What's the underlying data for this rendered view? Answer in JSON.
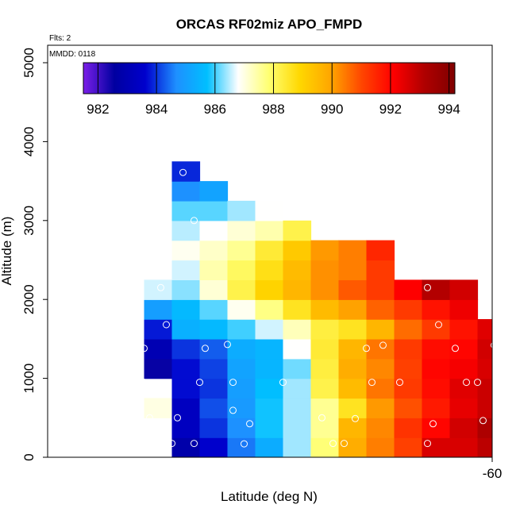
{
  "chart_data": {
    "type": "heatmap",
    "title": "ORCAS RF02miz APO_FMPD",
    "annotations": {
      "flights": "Flts: 2",
      "date": "MMDD: 0118"
    },
    "xlabel": "Latitude (deg N)",
    "ylabel": "Altitude (m)",
    "x_tick_labels": [
      "-60"
    ],
    "y_ticks": [
      0,
      1000,
      2000,
      3000,
      4000,
      5000
    ],
    "ylim": [
      0,
      5200
    ],
    "colorbar": {
      "ticks": [
        982,
        984,
        986,
        988,
        990,
        992,
        994
      ],
      "range": [
        981.5,
        994.2
      ],
      "stops": [
        "#7b1fe8",
        "#0000a0",
        "#0000cd",
        "#1e90ff",
        "#00bfff",
        "#ffffff",
        "#ffff70",
        "#ffd700",
        "#ffa500",
        "#ff4500",
        "#ff0000",
        "#b00000",
        "#800000"
      ]
    },
    "cell_size": {
      "lat": 0.5,
      "alt_m": 250
    },
    "columns": [
      {
        "lat": -62.5,
        "cells": [
          [
            500,
            987.0
          ],
          [
            1000,
            982.5
          ],
          [
            1250,
            983.0
          ],
          [
            1500,
            983.8
          ],
          [
            1750,
            985.0
          ],
          [
            2000,
            986.6
          ]
        ]
      },
      {
        "lat": -62.0,
        "cells": [
          [
            0,
            982.8
          ],
          [
            250,
            983.3
          ],
          [
            500,
            983.3
          ],
          [
            750,
            983.7
          ],
          [
            1000,
            983.7
          ],
          [
            1250,
            984.0
          ],
          [
            1500,
            985.4
          ],
          [
            1750,
            985.6
          ],
          [
            2000,
            986.3
          ],
          [
            2250,
            986.6
          ],
          [
            2500,
            986.9
          ],
          [
            2750,
            986.5
          ],
          [
            3000,
            986.1
          ],
          [
            3250,
            984.7
          ],
          [
            3500,
            983.9
          ]
        ]
      },
      {
        "lat": -61.5,
        "cells": [
          [
            0,
            983.6
          ],
          [
            250,
            984.0
          ],
          [
            500,
            984.2
          ],
          [
            750,
            984.0
          ],
          [
            1000,
            984.1
          ],
          [
            1250,
            984.3
          ],
          [
            1500,
            985.6
          ],
          [
            1750,
            986.1
          ],
          [
            2000,
            987.1
          ],
          [
            2250,
            987.4
          ],
          [
            2500,
            987.2
          ],
          [
            2750,
            986.8
          ],
          [
            3000,
            986.1
          ],
          [
            3250,
            985.1
          ]
        ]
      },
      {
        "lat": -61.0,
        "cells": [
          [
            0,
            984.5
          ],
          [
            250,
            984.7
          ],
          [
            500,
            984.9
          ],
          [
            750,
            985.0
          ],
          [
            1000,
            985.1
          ],
          [
            1250,
            985.3
          ],
          [
            1500,
            986.0
          ],
          [
            1750,
            986.9
          ],
          [
            2000,
            988.2
          ],
          [
            2250,
            988.0
          ],
          [
            2500,
            987.6
          ],
          [
            2750,
            987.1
          ],
          [
            3000,
            986.4
          ]
        ]
      },
      {
        "lat": -60.5,
        "cells": [
          [
            0,
            985.3
          ],
          [
            250,
            985.8
          ],
          [
            500,
            985.8
          ],
          [
            750,
            985.7
          ],
          [
            1000,
            985.5
          ],
          [
            1250,
            985.5
          ],
          [
            1500,
            986.6
          ],
          [
            1750,
            987.7
          ],
          [
            2000,
            989.0
          ],
          [
            2250,
            988.7
          ],
          [
            2500,
            988.4
          ],
          [
            2750,
            987.4
          ],
          [
            3000,
            986.8
          ]
        ]
      },
      {
        "lat": -60.0,
        "cells": [
          [
            0,
            986.4
          ],
          [
            250,
            986.4
          ],
          [
            500,
            986.4
          ],
          [
            750,
            986.4
          ],
          [
            1000,
            986.2
          ],
          [
            1250,
            986.8
          ],
          [
            1500,
            987.3
          ],
          [
            1750,
            988.6
          ],
          [
            2000,
            989.6
          ],
          [
            2250,
            989.5
          ],
          [
            2500,
            989.2
          ],
          [
            2750,
            988.2
          ]
        ]
      },
      {
        "lat": -59.5,
        "cells": [
          [
            0,
            987.8
          ],
          [
            250,
            987.6
          ],
          [
            500,
            987.6
          ],
          [
            750,
            988.2
          ],
          [
            1000,
            988.3
          ],
          [
            1250,
            988.4
          ],
          [
            1500,
            988.3
          ],
          [
            1750,
            989.5
          ],
          [
            2000,
            990.2
          ],
          [
            2250,
            990.2
          ],
          [
            2500,
            990.1
          ]
        ]
      },
      {
        "lat": -59.0,
        "cells": [
          [
            0,
            989.8
          ],
          [
            250,
            989.6
          ],
          [
            500,
            988.6
          ],
          [
            750,
            989.5
          ],
          [
            1000,
            989.8
          ],
          [
            1250,
            989.6
          ],
          [
            1500,
            988.6
          ],
          [
            1750,
            990.0
          ],
          [
            2000,
            990.8
          ],
          [
            2250,
            990.4
          ],
          [
            2500,
            990.4
          ]
        ]
      },
      {
        "lat": -58.5,
        "cells": [
          [
            0,
            990.4
          ],
          [
            250,
            990.3
          ],
          [
            500,
            990.1
          ],
          [
            750,
            990.5
          ],
          [
            1000,
            990.3
          ],
          [
            1250,
            990.5
          ],
          [
            1500,
            989.6
          ],
          [
            1750,
            990.7
          ],
          [
            2000,
            991.2
          ],
          [
            2250,
            991.2
          ],
          [
            2500,
            991.5
          ]
        ]
      },
      {
        "lat": -58.0,
        "cells": [
          [
            0,
            991.1
          ],
          [
            250,
            991.3
          ],
          [
            500,
            990.9
          ],
          [
            750,
            991.2
          ],
          [
            1000,
            991.1
          ],
          [
            1250,
            991.2
          ],
          [
            1500,
            990.6
          ],
          [
            1750,
            991.2
          ],
          [
            2000,
            992.1
          ]
        ]
      },
      {
        "lat": -57.5,
        "cells": [
          [
            0,
            992.6
          ],
          [
            250,
            992.0
          ],
          [
            500,
            991.7
          ],
          [
            750,
            991.9
          ],
          [
            1000,
            992.0
          ],
          [
            1250,
            991.9
          ],
          [
            1500,
            991.2
          ],
          [
            1750,
            991.8
          ],
          [
            2000,
            993.1
          ]
        ]
      },
      {
        "lat": -57.0,
        "cells": [
          [
            0,
            992.6
          ],
          [
            250,
            992.7
          ],
          [
            500,
            992.4
          ],
          [
            750,
            992.5
          ],
          [
            1000,
            992.2
          ],
          [
            1250,
            992.0
          ],
          [
            1500,
            991.8
          ],
          [
            1750,
            992.3
          ],
          [
            2000,
            992.7
          ]
        ]
      },
      {
        "lat": -56.5,
        "cells": [
          [
            0,
            993.0
          ],
          [
            250,
            993.2
          ],
          [
            500,
            992.8
          ],
          [
            750,
            992.8
          ],
          [
            1000,
            992.6
          ],
          [
            1250,
            992.7
          ],
          [
            1500,
            992.5
          ]
        ]
      },
      {
        "lat": -56.0,
        "cells": [
          [
            0,
            993.4
          ],
          [
            250,
            993.2
          ],
          [
            500,
            992.8
          ],
          [
            750,
            992.7
          ],
          [
            1000,
            992.9
          ],
          [
            1250,
            992.6
          ]
        ]
      }
    ],
    "observations": [
      {
        "lat": -62.5,
        "alt": 1380
      },
      {
        "lat": -62.5,
        "alt": 950
      },
      {
        "lat": -62.4,
        "alt": 500
      },
      {
        "lat": -62.2,
        "alt": 2150
      },
      {
        "lat": -62.1,
        "alt": 1680
      },
      {
        "lat": -62.0,
        "alt": 175
      },
      {
        "lat": -61.9,
        "alt": 500
      },
      {
        "lat": -61.8,
        "alt": 3610
      },
      {
        "lat": -61.6,
        "alt": 175
      },
      {
        "lat": -61.6,
        "alt": 3000
      },
      {
        "lat": -61.5,
        "alt": 950
      },
      {
        "lat": -61.4,
        "alt": 1380
      },
      {
        "lat": -61.0,
        "alt": 1430
      },
      {
        "lat": -60.9,
        "alt": 950
      },
      {
        "lat": -60.9,
        "alt": 595
      },
      {
        "lat": -60.7,
        "alt": 170
      },
      {
        "lat": -60.6,
        "alt": 425
      },
      {
        "lat": -60.0,
        "alt": 950
      },
      {
        "lat": -59.9,
        "alt": 1430
      },
      {
        "lat": -59.6,
        "alt": 1360
      },
      {
        "lat": -59.3,
        "alt": 500
      },
      {
        "lat": -59.1,
        "alt": 175
      },
      {
        "lat": -58.9,
        "alt": 175
      },
      {
        "lat": -58.7,
        "alt": 490
      },
      {
        "lat": -58.5,
        "alt": 1380
      },
      {
        "lat": -58.4,
        "alt": 950
      },
      {
        "lat": -58.2,
        "alt": 1420
      },
      {
        "lat": -57.9,
        "alt": 950
      },
      {
        "lat": -57.4,
        "alt": 175
      },
      {
        "lat": -57.4,
        "alt": 2150
      },
      {
        "lat": -57.3,
        "alt": 425
      },
      {
        "lat": -57.2,
        "alt": 1680
      },
      {
        "lat": -56.9,
        "alt": 1380
      },
      {
        "lat": -56.7,
        "alt": 950
      },
      {
        "lat": -56.5,
        "alt": 950
      },
      {
        "lat": -56.4,
        "alt": 465
      },
      {
        "lat": -56.2,
        "alt": 1420
      },
      {
        "lat": -56.0,
        "alt": 175
      },
      {
        "lat": -55.8,
        "alt": 1340
      }
    ]
  }
}
